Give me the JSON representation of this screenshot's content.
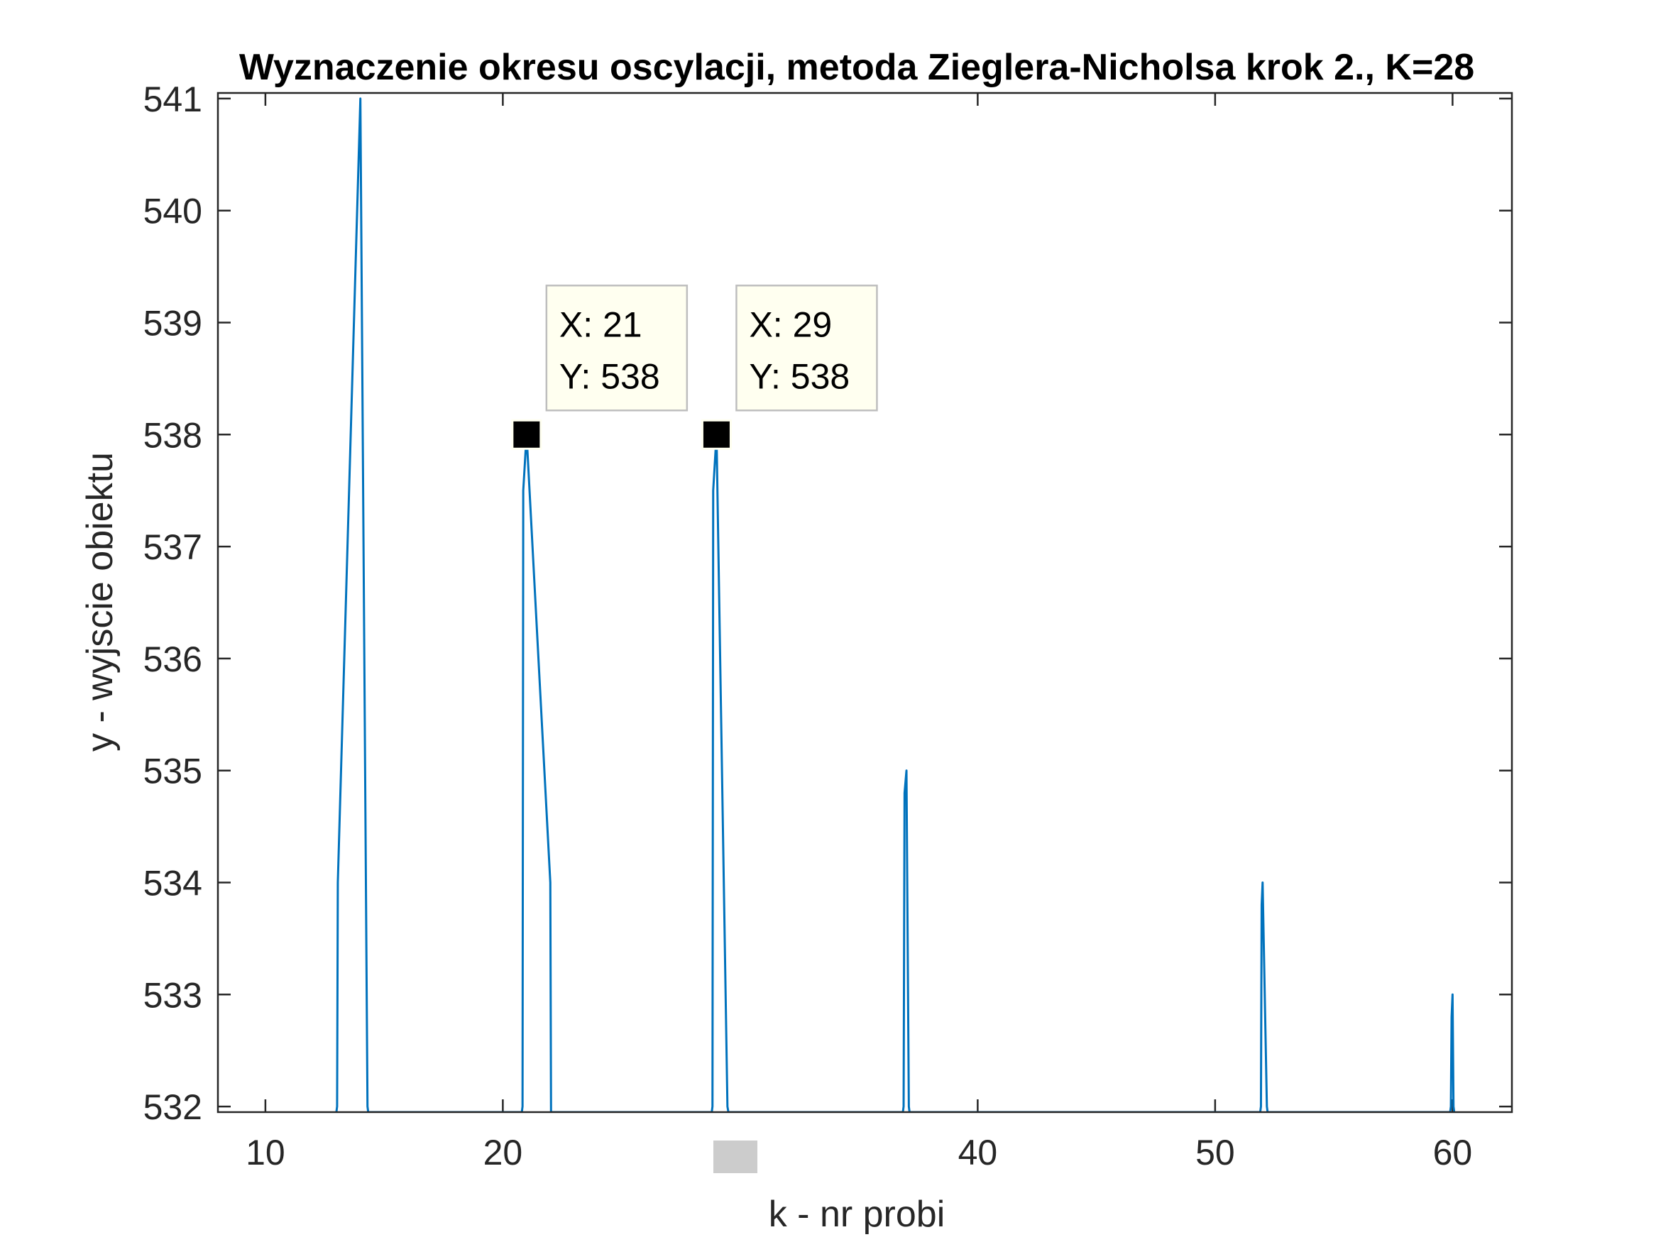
{
  "chart_data": {
    "type": "line",
    "title": "Wyznaczenie okresu oscylacji, metoda Zieglera-Nicholsa krok 2., K=28",
    "xlabel": "k - nr probi",
    "ylabel": "y - wyjscie obiektu",
    "xlim": [
      8,
      62.5
    ],
    "ylim": [
      531.95,
      541.05
    ],
    "x_ticks": [
      {
        "value": 10,
        "label": "10"
      },
      {
        "value": 20,
        "label": "20"
      },
      {
        "value": 40,
        "label": "40"
      },
      {
        "value": 50,
        "label": "50"
      },
      {
        "value": 60,
        "label": "60"
      }
    ],
    "y_ticks": [
      {
        "value": 532,
        "label": "532"
      },
      {
        "value": 533,
        "label": "533"
      },
      {
        "value": 534,
        "label": "534"
      },
      {
        "value": 535,
        "label": "535"
      },
      {
        "value": 536,
        "label": "536"
      },
      {
        "value": 537,
        "label": "537"
      },
      {
        "value": 538,
        "label": "538"
      },
      {
        "value": 539,
        "label": "539"
      },
      {
        "value": 540,
        "label": "540"
      },
      {
        "value": 541,
        "label": "541"
      }
    ],
    "series": [
      {
        "color": "#0072BD",
        "x": [
          12.99,
          13.02,
          13.05,
          14.0,
          14.3,
          14.33,
          20.8,
          20.83,
          20.86,
          21.0,
          22.0,
          22.03,
          28.8,
          28.83,
          28.86,
          29.0,
          29.46,
          29.5,
          36.85,
          36.88,
          36.92,
          37.0,
          37.1,
          37.13,
          51.9,
          51.93,
          51.96,
          52.0,
          52.18,
          52.21,
          59.9,
          59.93,
          59.96,
          60.0,
          60.04,
          60.07
        ],
        "y": [
          531.95,
          532,
          534,
          541,
          532,
          531.95,
          531.95,
          532,
          537.5,
          538,
          534,
          531.95,
          531.95,
          532,
          537.5,
          538,
          532,
          531.95,
          531.95,
          532,
          534.8,
          535,
          532,
          531.95,
          531.95,
          532,
          533.8,
          534,
          532,
          531.95,
          531.95,
          532,
          532.8,
          533,
          532,
          531.95
        ]
      }
    ],
    "datatips": [
      {
        "x": 21,
        "y": 538,
        "label_x": "X: 21",
        "label_y": "Y: 538"
      },
      {
        "x": 29,
        "y": 538,
        "label_x": "X: 29",
        "label_y": "Y: 538"
      }
    ],
    "grid": false,
    "legend": false,
    "colors": {
      "line": "#0072BD",
      "axis": "#262626",
      "datatip_bg": "#FFFFF0",
      "datatip_border": "#BEBEBE",
      "marker": "#000000",
      "marker_edge": "#FFFFF0",
      "occluder": "#CCCCCC"
    }
  }
}
